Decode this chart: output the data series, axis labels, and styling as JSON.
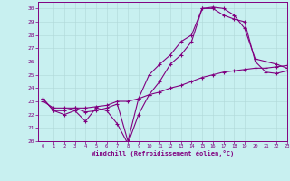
{
  "xlabel": "Windchill (Refroidissement éolien,°C)",
  "bg_color": "#c8f0f0",
  "line_color": "#800080",
  "grid_color": "#b0d8d8",
  "xlim": [
    -0.5,
    23
  ],
  "ylim": [
    20,
    30.5
  ],
  "xticks": [
    0,
    1,
    2,
    3,
    4,
    5,
    6,
    7,
    8,
    9,
    10,
    11,
    12,
    13,
    14,
    15,
    16,
    17,
    18,
    19,
    20,
    21,
    22,
    23
  ],
  "yticks": [
    20,
    21,
    22,
    23,
    24,
    25,
    26,
    27,
    28,
    29,
    30
  ],
  "line1_x": [
    0,
    1,
    2,
    3,
    4,
    5,
    6,
    7,
    8,
    9,
    10,
    11,
    12,
    13,
    14,
    15,
    16,
    17,
    18,
    19,
    20,
    21,
    22,
    23
  ],
  "line1_y": [
    23.2,
    22.3,
    22.3,
    22.5,
    22.2,
    22.3,
    22.5,
    22.8,
    20.0,
    23.2,
    25.0,
    25.8,
    26.5,
    27.5,
    28.0,
    30.0,
    30.0,
    29.5,
    29.2,
    29.0,
    26.0,
    25.2,
    25.1,
    25.3
  ],
  "line2_x": [
    0,
    1,
    2,
    3,
    4,
    5,
    6,
    7,
    8,
    9,
    10,
    11,
    12,
    13,
    14,
    15,
    16,
    17,
    18,
    19,
    20,
    21,
    22,
    23
  ],
  "line2_y": [
    23.2,
    22.3,
    22.0,
    22.3,
    21.5,
    22.5,
    22.3,
    21.3,
    19.8,
    22.0,
    23.5,
    24.5,
    25.8,
    26.5,
    27.5,
    30.0,
    30.1,
    30.0,
    29.5,
    28.5,
    26.2,
    26.0,
    25.8,
    25.5
  ],
  "line3_x": [
    0,
    1,
    2,
    3,
    4,
    5,
    6,
    7,
    8,
    9,
    10,
    11,
    12,
    13,
    14,
    15,
    16,
    17,
    18,
    19,
    20,
    21,
    22,
    23
  ],
  "line3_y": [
    23.0,
    22.5,
    22.5,
    22.5,
    22.5,
    22.6,
    22.7,
    23.0,
    23.0,
    23.2,
    23.5,
    23.7,
    24.0,
    24.2,
    24.5,
    24.8,
    25.0,
    25.2,
    25.3,
    25.4,
    25.5,
    25.5,
    25.6,
    25.7
  ]
}
